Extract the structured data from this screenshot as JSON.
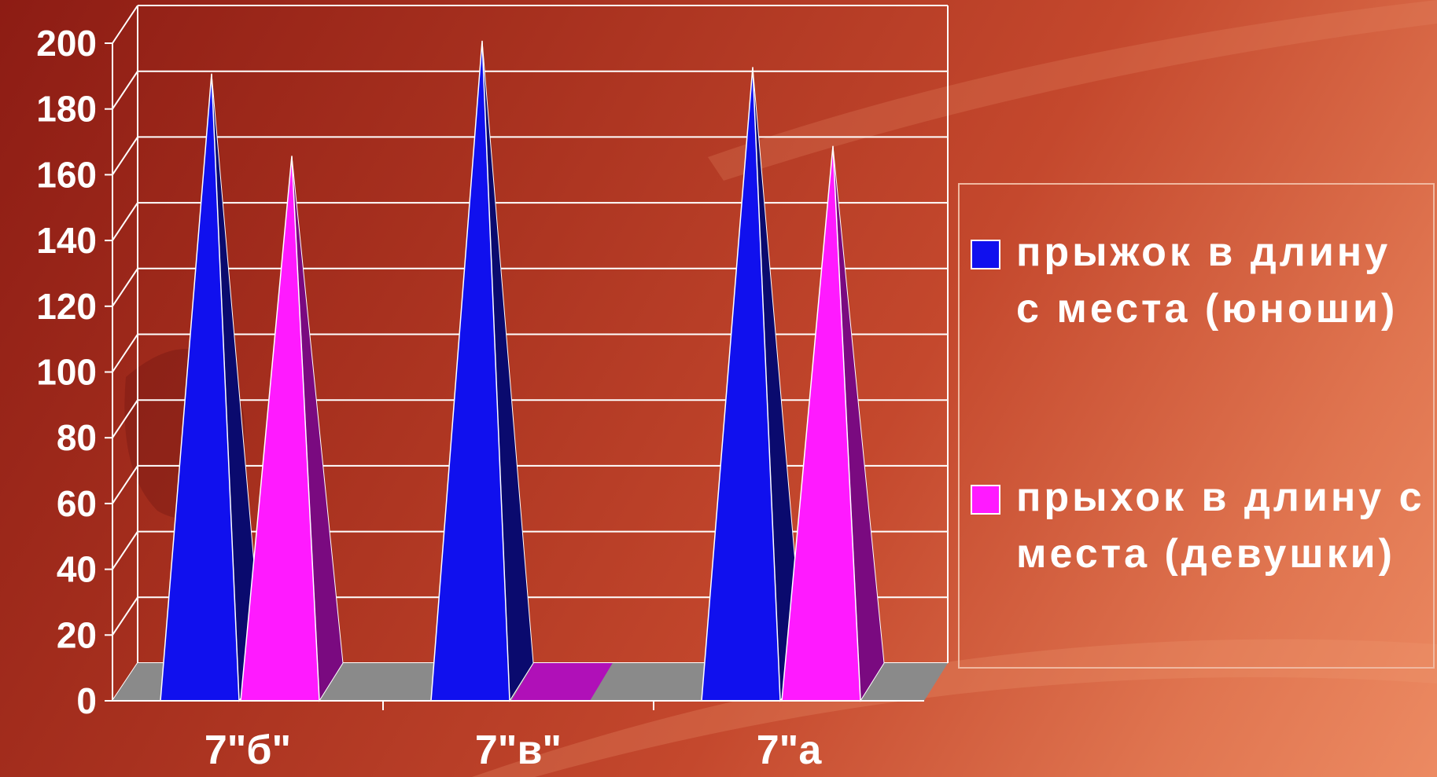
{
  "colors": {
    "series1": "#1010ee",
    "series1_dark": "#0a0a6e",
    "series2": "#ff1aff",
    "series2_dark": "#7a0a80",
    "floor": "#8a8a8a",
    "grid": "#ffffff",
    "text": "#ffffff"
  },
  "legend": {
    "items": [
      {
        "label": "прыжок в длину с места (юноши)"
      },
      {
        "label": "прыхок в длину с места (девушки)"
      }
    ]
  },
  "chart_data": {
    "type": "bar",
    "style": "3d-pyramid",
    "categories": [
      "7\"б\"",
      "7\"в\"",
      "7\"а"
    ],
    "series": [
      {
        "name": "прыжок в длину с места (юноши)",
        "values": [
          185,
          195,
          187
        ]
      },
      {
        "name": "прыхок в длину с места (девушки)",
        "values": [
          160,
          0,
          163
        ]
      }
    ],
    "ylim": [
      0,
      200
    ],
    "yticks": [
      "0",
      "20",
      "40",
      "60",
      "80",
      "100",
      "120",
      "140",
      "160",
      "180",
      "200"
    ],
    "grid": true,
    "legend_position": "right"
  }
}
